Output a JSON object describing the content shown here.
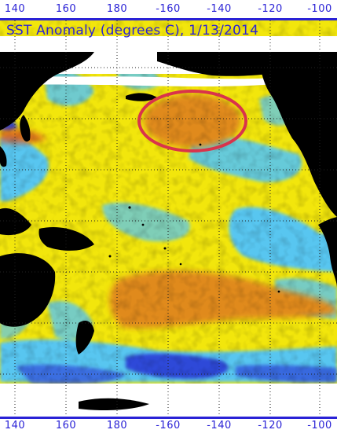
{
  "map": {
    "title": "SST Anomaly (degrees C), 1/13/2014",
    "longitude_ticks": [
      "140",
      "160",
      "180",
      "-160",
      "-140",
      "-120",
      "-100"
    ],
    "projection": "equirectangular",
    "colors": {
      "axis_text": "#2a22d6",
      "land": "#000000",
      "no_data": "#ffffff",
      "warm_anomaly": "#f2e60c",
      "strong_warm_anomaly": "#e08a1e",
      "cool_anomaly": "#58c6f0",
      "strong_cool_anomaly": "#2f4ad8",
      "highlight_circle": "#d9334b"
    },
    "annotation": "highlight-circle"
  }
}
